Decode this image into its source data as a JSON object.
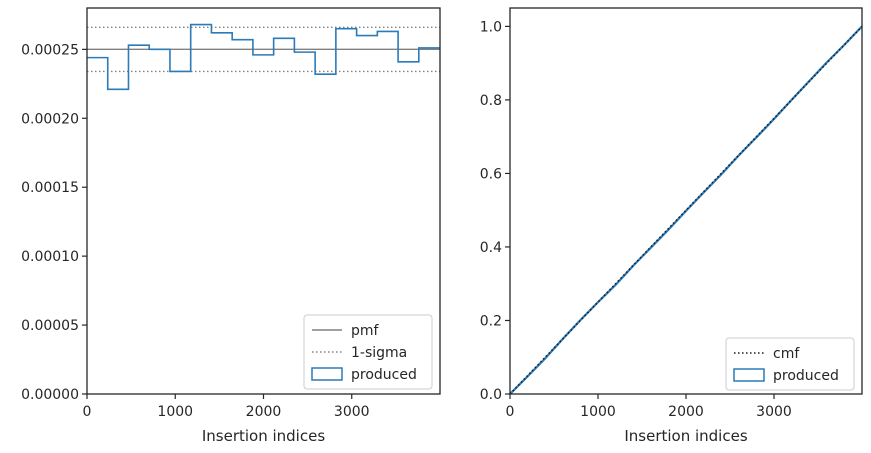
{
  "chart_data": [
    {
      "type": "histogram-step",
      "xlabel": "Insertion indices",
      "ylabel": "",
      "xlim": [
        0,
        4000
      ],
      "ylim": [
        0,
        0.00028
      ],
      "xticks": [
        0,
        1000,
        2000,
        3000
      ],
      "xtick_labels": [
        "0",
        "1000",
        "2000",
        "3000"
      ],
      "yticks": [
        0,
        5e-05,
        0.0001,
        0.00015,
        0.0002,
        0.00025
      ],
      "ytick_labels": [
        "0.00000",
        "0.00005",
        "0.00010",
        "0.00015",
        "0.00020",
        "0.00025"
      ],
      "grid": false,
      "legend_position": "lower-right",
      "pmf": 0.00025,
      "sigma_band": [
        0.000234,
        0.000266
      ],
      "bin_edges": [
        0,
        235,
        470,
        705,
        940,
        1175,
        1410,
        1645,
        1880,
        2115,
        2350,
        2585,
        2820,
        3055,
        3290,
        3525,
        3760,
        4000
      ],
      "bin_values": [
        0.000244,
        0.000221,
        0.000253,
        0.00025,
        0.000234,
        0.000268,
        0.000262,
        0.000257,
        0.000246,
        0.000258,
        0.000248,
        0.000232,
        0.000265,
        0.00026,
        0.000263,
        0.000241,
        0.000251
      ],
      "legend": [
        {
          "label": "pmf",
          "style": "solid",
          "color": "#808080"
        },
        {
          "label": "1-sigma",
          "style": "dotted",
          "color": "#808080"
        },
        {
          "label": "produced",
          "style": "box",
          "color": "#2b7bb9"
        }
      ]
    },
    {
      "type": "line",
      "xlabel": "Insertion indices",
      "ylabel": "",
      "xlim": [
        0,
        4000
      ],
      "ylim": [
        0,
        1.05
      ],
      "xticks": [
        0,
        1000,
        2000,
        3000
      ],
      "xtick_labels": [
        "0",
        "1000",
        "2000",
        "3000"
      ],
      "yticks": [
        0,
        0.2,
        0.4,
        0.6,
        0.8,
        1.0
      ],
      "ytick_labels": [
        "0.0",
        "0.2",
        "0.4",
        "0.6",
        "0.8",
        "1.0"
      ],
      "grid": false,
      "legend_position": "lower-right",
      "cmf": {
        "x": [
          0,
          4000
        ],
        "y": [
          0,
          1.0
        ]
      },
      "produced": {
        "x": [
          0,
          200,
          400,
          600,
          800,
          1000,
          1200,
          1400,
          1600,
          1800,
          2000,
          2200,
          2400,
          2600,
          2800,
          3000,
          3200,
          3400,
          3600,
          3800,
          4000
        ],
        "y": [
          0,
          0.048,
          0.097,
          0.15,
          0.201,
          0.25,
          0.297,
          0.349,
          0.398,
          0.447,
          0.498,
          0.548,
          0.597,
          0.649,
          0.698,
          0.748,
          0.8,
          0.851,
          0.902,
          0.95,
          1.0
        ]
      },
      "legend": [
        {
          "label": "cmf",
          "style": "dotted",
          "color": "#1a1a1a"
        },
        {
          "label": "produced",
          "style": "box",
          "color": "#2b7bb9"
        }
      ]
    }
  ]
}
